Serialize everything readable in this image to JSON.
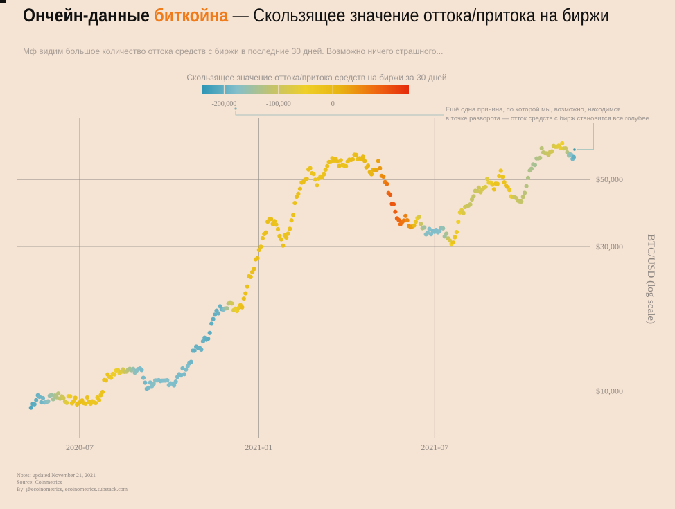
{
  "header": {
    "title_part1": "Ончейн-данные ",
    "title_highlight": "биткойна",
    "title_part2": " — Скользящее значение оттока/притока на биржи",
    "subtitle": "Мф видим большое количество оттока средств с биржи в последние 30 дней. Возможно ничего страшного..."
  },
  "colors": {
    "background": "#f5e3d3",
    "highlight": "#f07b1a",
    "gradient": [
      "#2e96b5",
      "#83bfcb",
      "#c2c36e",
      "#efcf28",
      "#e8b411",
      "#ef6b10",
      "#e52a0c"
    ]
  },
  "legend": {
    "title": "Скользящее значение оттока/притока средств на биржи за 30 дней",
    "ticks": [
      "-200,000",
      "-100,000",
      "0"
    ],
    "tick_values": [
      -200000,
      -100000,
      0
    ],
    "domain": [
      -240000,
      140000
    ]
  },
  "annotation": {
    "line1": "Ещё одна причина, по которой мы, возможно, находимся",
    "line2": "в точке разворота — отток средств с бирж становится все голубее..."
  },
  "notes": {
    "line1": "Notes: updated November 21, 2021",
    "line2": "Source: Coinmetrics",
    "line3": "By: @ecoinometrics, ecoinometrics.substack.com"
  },
  "chart_data": {
    "type": "scatter",
    "title": "Ончейн-данные биткойна — Скользящее значение оттока/притока на биржи",
    "xlabel": "",
    "ylabel": "BTC/USD (log scale)",
    "y_scale": "log",
    "ylim": [
      7000,
      80000
    ],
    "xlim": [
      "2020-05-10",
      "2021-11-21"
    ],
    "x_ticks": [
      {
        "date": "2020-07-01",
        "label": "2020-07"
      },
      {
        "date": "2021-01-01",
        "label": "2021-01"
      },
      {
        "date": "2021-07-01",
        "label": "2021-07"
      }
    ],
    "y_ticks": [
      {
        "value": 10000,
        "label": "$10,000"
      },
      {
        "value": 30000,
        "label": "$30,000"
      },
      {
        "value": 50000,
        "label": "$50,000"
      }
    ],
    "color_by": "flow",
    "points": [
      {
        "date": "2020-05-12",
        "price": 8800,
        "flow": -215000
      },
      {
        "date": "2020-05-19",
        "price": 9700,
        "flow": -195000
      },
      {
        "date": "2020-05-26",
        "price": 9100,
        "flow": -185000
      },
      {
        "date": "2020-06-02",
        "price": 9600,
        "flow": -150000
      },
      {
        "date": "2020-06-09",
        "price": 9700,
        "flow": -120000
      },
      {
        "date": "2020-06-16",
        "price": 9400,
        "flow": -80000
      },
      {
        "date": "2020-06-23",
        "price": 9300,
        "flow": -30000
      },
      {
        "date": "2020-06-30",
        "price": 9150,
        "flow": -10000
      },
      {
        "date": "2020-07-07",
        "price": 9250,
        "flow": -20000
      },
      {
        "date": "2020-07-14",
        "price": 9200,
        "flow": -30000
      },
      {
        "date": "2020-07-21",
        "price": 9400,
        "flow": -25000
      },
      {
        "date": "2020-07-28",
        "price": 11000,
        "flow": -20000
      },
      {
        "date": "2020-08-04",
        "price": 11300,
        "flow": -40000
      },
      {
        "date": "2020-08-11",
        "price": 11700,
        "flow": -60000
      },
      {
        "date": "2020-08-18",
        "price": 11900,
        "flow": -110000
      },
      {
        "date": "2020-08-25",
        "price": 11500,
        "flow": -160000
      },
      {
        "date": "2020-09-01",
        "price": 11900,
        "flow": -180000
      },
      {
        "date": "2020-09-08",
        "price": 10300,
        "flow": -190000
      },
      {
        "date": "2020-09-15",
        "price": 10700,
        "flow": -170000
      },
      {
        "date": "2020-09-22",
        "price": 10500,
        "flow": -180000
      },
      {
        "date": "2020-09-29",
        "price": 10800,
        "flow": -175000
      },
      {
        "date": "2020-10-06",
        "price": 10600,
        "flow": -180000
      },
      {
        "date": "2020-10-13",
        "price": 11400,
        "flow": -185000
      },
      {
        "date": "2020-10-20",
        "price": 12000,
        "flow": -180000
      },
      {
        "date": "2020-10-27",
        "price": 13600,
        "flow": -200000
      },
      {
        "date": "2020-11-03",
        "price": 14000,
        "flow": -195000
      },
      {
        "date": "2020-11-10",
        "price": 15300,
        "flow": -205000
      },
      {
        "date": "2020-11-17",
        "price": 17700,
        "flow": -200000
      },
      {
        "date": "2020-11-24",
        "price": 19000,
        "flow": -195000
      },
      {
        "date": "2020-12-01",
        "price": 19400,
        "flow": -120000
      },
      {
        "date": "2020-12-08",
        "price": 18700,
        "flow": -60000
      },
      {
        "date": "2020-12-15",
        "price": 19400,
        "flow": -10000
      },
      {
        "date": "2020-12-22",
        "price": 23500,
        "flow": -20000
      },
      {
        "date": "2020-12-29",
        "price": 27000,
        "flow": -10000
      },
      {
        "date": "2021-01-05",
        "price": 32000,
        "flow": -20000
      },
      {
        "date": "2021-01-12",
        "price": 37000,
        "flow": -10000
      },
      {
        "date": "2021-01-19",
        "price": 35000,
        "flow": -20000
      },
      {
        "date": "2021-01-26",
        "price": 31000,
        "flow": -15000
      },
      {
        "date": "2021-02-02",
        "price": 35000,
        "flow": -20000
      },
      {
        "date": "2021-02-09",
        "price": 44000,
        "flow": -15000
      },
      {
        "date": "2021-02-16",
        "price": 49000,
        "flow": -10000
      },
      {
        "date": "2021-02-23",
        "price": 54000,
        "flow": -20000
      },
      {
        "date": "2021-03-02",
        "price": 48000,
        "flow": -30000
      },
      {
        "date": "2021-03-09",
        "price": 52000,
        "flow": -20000
      },
      {
        "date": "2021-03-16",
        "price": 57000,
        "flow": -15000
      },
      {
        "date": "2021-03-23",
        "price": 57500,
        "flow": -10000
      },
      {
        "date": "2021-03-30",
        "price": 55000,
        "flow": -20000
      },
      {
        "date": "2021-04-06",
        "price": 58000,
        "flow": -5000
      },
      {
        "date": "2021-04-13",
        "price": 60000,
        "flow": -10000
      },
      {
        "date": "2021-04-20",
        "price": 57000,
        "flow": 5000
      },
      {
        "date": "2021-04-27",
        "price": 53000,
        "flow": 10000
      },
      {
        "date": "2021-05-04",
        "price": 56000,
        "flow": 30000
      },
      {
        "date": "2021-05-11",
        "price": 50000,
        "flow": 60000
      },
      {
        "date": "2021-05-18",
        "price": 42000,
        "flow": 100000
      },
      {
        "date": "2021-05-25",
        "price": 36000,
        "flow": 80000
      },
      {
        "date": "2021-06-01",
        "price": 37000,
        "flow": 60000
      },
      {
        "date": "2021-06-08",
        "price": 35000,
        "flow": 30000
      },
      {
        "date": "2021-06-15",
        "price": 38000,
        "flow": -80000
      },
      {
        "date": "2021-06-22",
        "price": 33000,
        "flow": -170000
      },
      {
        "date": "2021-06-29",
        "price": 34000,
        "flow": -180000
      },
      {
        "date": "2021-07-06",
        "price": 34500,
        "flow": -175000
      },
      {
        "date": "2021-07-13",
        "price": 33000,
        "flow": -140000
      },
      {
        "date": "2021-07-20",
        "price": 30500,
        "flow": -20000
      },
      {
        "date": "2021-07-27",
        "price": 38000,
        "flow": -60000
      },
      {
        "date": "2021-08-03",
        "price": 40000,
        "flow": -100000
      },
      {
        "date": "2021-08-10",
        "price": 45000,
        "flow": -110000
      },
      {
        "date": "2021-08-17",
        "price": 46000,
        "flow": -90000
      },
      {
        "date": "2021-08-24",
        "price": 49000,
        "flow": -70000
      },
      {
        "date": "2021-08-31",
        "price": 47000,
        "flow": -20000
      },
      {
        "date": "2021-09-07",
        "price": 52000,
        "flow": -30000
      },
      {
        "date": "2021-09-14",
        "price": 47000,
        "flow": -10000
      },
      {
        "date": "2021-09-21",
        "price": 43000,
        "flow": -100000
      },
      {
        "date": "2021-09-28",
        "price": 42000,
        "flow": -110000
      },
      {
        "date": "2021-10-05",
        "price": 51000,
        "flow": -130000
      },
      {
        "date": "2021-10-12",
        "price": 56000,
        "flow": -140000
      },
      {
        "date": "2021-10-19",
        "price": 62000,
        "flow": -120000
      },
      {
        "date": "2021-10-26",
        "price": 62000,
        "flow": -100000
      },
      {
        "date": "2021-11-02",
        "price": 63000,
        "flow": -80000
      },
      {
        "date": "2021-11-09",
        "price": 66000,
        "flow": -50000
      },
      {
        "date": "2021-11-16",
        "price": 61000,
        "flow": -150000
      },
      {
        "date": "2021-11-21",
        "price": 59000,
        "flow": -200000
      }
    ]
  }
}
